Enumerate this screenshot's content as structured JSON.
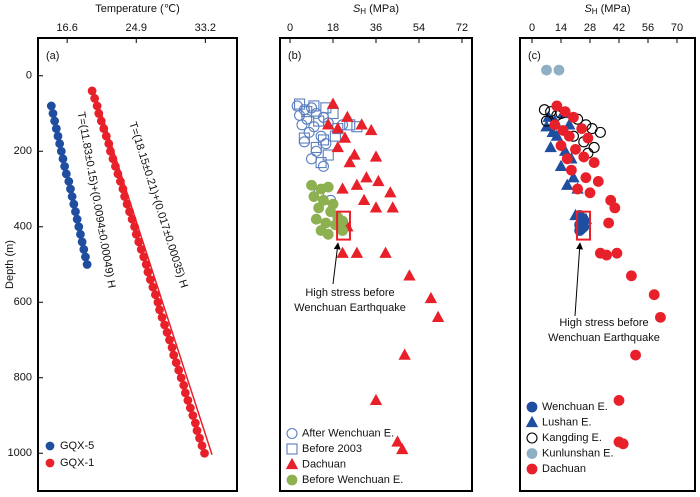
{
  "chart_data": [
    {
      "type": "scatter",
      "title": "(a)",
      "x_label": "Temperature (℃)",
      "y_label": "Depth (m)",
      "xlim": [
        13.1,
        37.0
      ],
      "xticks": [
        16.6,
        24.9,
        33.2
      ],
      "ylim": [
        -100,
        1100
      ],
      "y_inverted": true,
      "yticks": [
        0,
        200,
        400,
        600,
        800,
        1000
      ],
      "legend": "bottom-left",
      "series": [
        {
          "name": "GQX-5",
          "color": "#1f4ea0",
          "marker": "circle",
          "filled": true,
          "x": [
            14.7,
            14.9,
            15.1,
            15.3,
            15.5,
            15.7,
            15.9,
            16.1,
            16.3,
            16.5,
            16.8,
            17.0,
            17.2,
            17.4,
            17.6,
            17.8,
            18.0,
            18.2,
            18.4,
            18.6,
            18.8,
            19.0
          ],
          "y": [
            80,
            100,
            120,
            140,
            160,
            180,
            200,
            220,
            240,
            260,
            280,
            300,
            320,
            340,
            360,
            380,
            400,
            420,
            440,
            460,
            480,
            500
          ]
        },
        {
          "name": "GQX-1",
          "color": "#e8202a",
          "marker": "circle",
          "filled": true,
          "x": [
            19.6,
            19.9,
            20.2,
            20.4,
            20.7,
            21.0,
            21.3,
            21.6,
            21.8,
            22.1,
            22.4,
            22.7,
            23.0,
            23.3,
            23.5,
            23.8,
            24.1,
            24.4,
            24.7,
            24.9,
            25.2,
            25.5,
            25.8,
            26.1,
            26.3,
            26.6,
            26.9,
            27.2,
            27.5,
            27.7,
            28.0,
            28.3,
            28.6,
            28.9,
            29.2,
            29.4,
            29.7,
            30.0,
            30.3,
            30.6,
            30.8,
            31.1,
            31.4,
            31.7,
            32.0,
            32.2,
            32.5,
            32.8,
            33.1
          ],
          "y": [
            40,
            60,
            80,
            100,
            120,
            140,
            160,
            180,
            200,
            220,
            240,
            260,
            280,
            300,
            320,
            340,
            360,
            380,
            400,
            420,
            440,
            460,
            480,
            500,
            520,
            540,
            560,
            580,
            600,
            620,
            640,
            660,
            680,
            700,
            720,
            740,
            760,
            780,
            800,
            820,
            840,
            860,
            880,
            900,
            920,
            940,
            960,
            980,
            1000
          ]
        }
      ],
      "fit_lines": [
        {
          "label": "T=(11.83±0.15)+(0.0094±0.00049) H",
          "color": "#1f4ea0",
          "x": [
            14.6,
            19.1
          ],
          "y": [
            70,
            505
          ]
        },
        {
          "label": "T=(18.15±0.21)+(0.017±0.00035) H",
          "color": "#e8202a",
          "x": [
            19.7,
            34.0
          ],
          "y": [
            32,
            1004
          ]
        }
      ]
    },
    {
      "type": "scatter",
      "title": "(b)",
      "x_label": {
        "symbol": "S",
        "subscript": "H",
        "unit": "(MPa)"
      },
      "xlim": [
        -4.2,
        76.2
      ],
      "xticks": [
        0,
        18,
        36,
        54,
        72
      ],
      "ylim": [
        -100,
        1100
      ],
      "y_inverted": true,
      "legend": "bottom-left",
      "series": [
        {
          "name": "After Wenchuan E.",
          "color": "#5b7fc0",
          "marker": "circle",
          "filled": false,
          "x": [
            3,
            6,
            9,
            4,
            11,
            7,
            14,
            5,
            10,
            16,
            8,
            13,
            6,
            15,
            11,
            9,
            14,
            12,
            17,
            22
          ],
          "y": [
            80,
            90,
            85,
            105,
            100,
            115,
            110,
            130,
            135,
            125,
            150,
            160,
            175,
            180,
            200,
            220,
            240,
            310,
            330,
            130
          ]
        },
        {
          "name": "Before 2003",
          "color": "#5b7fc0",
          "marker": "square",
          "filled": false,
          "x": [
            4,
            10,
            15,
            7,
            18,
            12,
            20,
            25,
            6,
            14,
            19,
            11,
            16,
            13,
            28
          ],
          "y": [
            75,
            80,
            85,
            95,
            100,
            120,
            140,
            130,
            165,
            170,
            160,
            190,
            210,
            230,
            135
          ]
        },
        {
          "name": "Dachuan",
          "color": "#e8202a",
          "marker": "triangle",
          "filled": true,
          "x": [
            18,
            24,
            16,
            20,
            30,
            23,
            34,
            20,
            27,
            25,
            36,
            32,
            28,
            37,
            22,
            42,
            31,
            36,
            43,
            24,
            22,
            28,
            40,
            50,
            59,
            62,
            48,
            36,
            45,
            47
          ],
          "y": [
            75,
            110,
            130,
            140,
            130,
            165,
            145,
            190,
            210,
            230,
            215,
            270,
            290,
            280,
            300,
            310,
            330,
            350,
            350,
            400,
            470,
            470,
            470,
            530,
            590,
            640,
            740,
            860,
            970,
            990
          ]
        },
        {
          "name": "Before Wenchuan E.",
          "color": "#8db050",
          "marker": "circle",
          "filled": true,
          "x": [
            9,
            13,
            16,
            10,
            14,
            18,
            12,
            17,
            11,
            15,
            19,
            13,
            16,
            22,
            22,
            20
          ],
          "y": [
            290,
            300,
            295,
            320,
            330,
            340,
            350,
            360,
            380,
            390,
            395,
            410,
            420,
            385,
            410,
            375
          ]
        }
      ],
      "highlight": {
        "x": [
          19.7,
          25.1
        ],
        "y": [
          360,
          434
        ]
      },
      "annotation": [
        "High stress  before",
        "Wenchuan Earthquake"
      ]
    },
    {
      "type": "scatter",
      "title": "(c)",
      "x_label": {
        "symbol": "S",
        "subscript": "H",
        "unit": "(MPa)"
      },
      "xlim": [
        -5.8,
        78.7
      ],
      "xticks": [
        0,
        14,
        28,
        42,
        56,
        70
      ],
      "ylim": [
        -100,
        1100
      ],
      "y_inverted": true,
      "legend": "bottom-left",
      "series": [
        {
          "name": "Wenchuan E.",
          "color": "#1f4ea0",
          "marker": "circle",
          "filled": true,
          "x": [
            23,
            24,
            23,
            24,
            23,
            25
          ],
          "y": [
            370,
            385,
            395,
            405,
            410,
            400
          ]
        },
        {
          "name": "Lushan E.",
          "color": "#1f4ea0",
          "marker": "triangle",
          "filled": true,
          "x": [
            8,
            11,
            15,
            7,
            10,
            18,
            12,
            9,
            16,
            19,
            14,
            20,
            17,
            22,
            21,
            26
          ],
          "y": [
            110,
            120,
            100,
            135,
            150,
            130,
            160,
            190,
            200,
            220,
            240,
            270,
            290,
            300,
            370,
            380
          ]
        },
        {
          "name": "Kangding E.",
          "color": "#000000",
          "marker": "circle",
          "filled": false,
          "x": [
            6,
            9,
            14,
            7,
            22,
            26,
            29,
            33,
            20,
            25,
            30,
            27,
            12
          ],
          "y": [
            90,
            95,
            100,
            120,
            115,
            130,
            140,
            150,
            160,
            175,
            190,
            205,
            105
          ]
        },
        {
          "name": "Kunlunshan E.",
          "color": "#8fafc4",
          "marker": "circle",
          "filled": true,
          "x": [
            7,
            13
          ],
          "y": [
            -15,
            -15
          ]
        },
        {
          "name": "Dachuan",
          "color": "#e8202a",
          "marker": "circle",
          "filled": true,
          "x": [
            12,
            16,
            20,
            11,
            15,
            24,
            18,
            27,
            14,
            21,
            17,
            25,
            30,
            19,
            26,
            32,
            22,
            28,
            38,
            40,
            37,
            33,
            36,
            41,
            48,
            59,
            62,
            50,
            42,
            42,
            44
          ],
          "y": [
            80,
            95,
            110,
            130,
            145,
            140,
            160,
            165,
            185,
            195,
            220,
            215,
            230,
            250,
            270,
            280,
            300,
            310,
            330,
            350,
            390,
            470,
            475,
            470,
            530,
            580,
            640,
            740,
            860,
            970,
            975
          ]
        }
      ],
      "highlight": {
        "x": [
          21.7,
          28.0
        ],
        "y": [
          360,
          434
        ]
      },
      "annotation": [
        "High stress  before",
        "Wenchuan Earthquake"
      ]
    }
  ]
}
